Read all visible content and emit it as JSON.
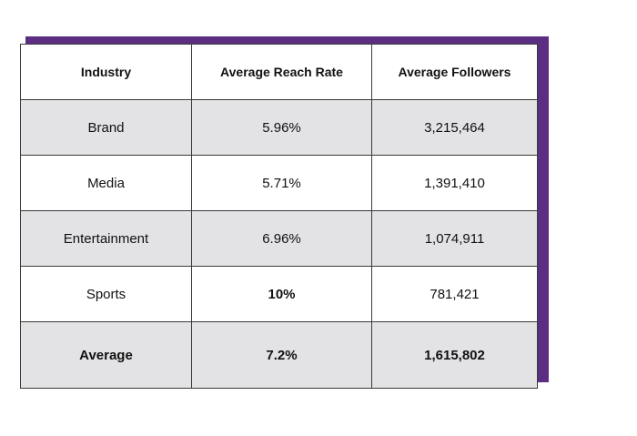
{
  "colors": {
    "frame_accent": "#5b2d83",
    "shaded_row": "#e3e3e6",
    "border": "#3a3a3a"
  },
  "table": {
    "headers": [
      "Industry",
      "Average Reach Rate",
      "Average Followers"
    ],
    "rows": [
      {
        "industry": "Brand",
        "reach_rate": "5.96%",
        "followers": "3,215,464"
      },
      {
        "industry": "Media",
        "reach_rate": "5.71%",
        "followers": "1,391,410"
      },
      {
        "industry": "Entertainment",
        "reach_rate": "6.96%",
        "followers": "1,074,911"
      },
      {
        "industry": "Sports",
        "reach_rate": "10%",
        "followers": "781,421"
      }
    ],
    "average": {
      "industry": "Average",
      "reach_rate": "7.2%",
      "followers": "1,615,802"
    }
  }
}
